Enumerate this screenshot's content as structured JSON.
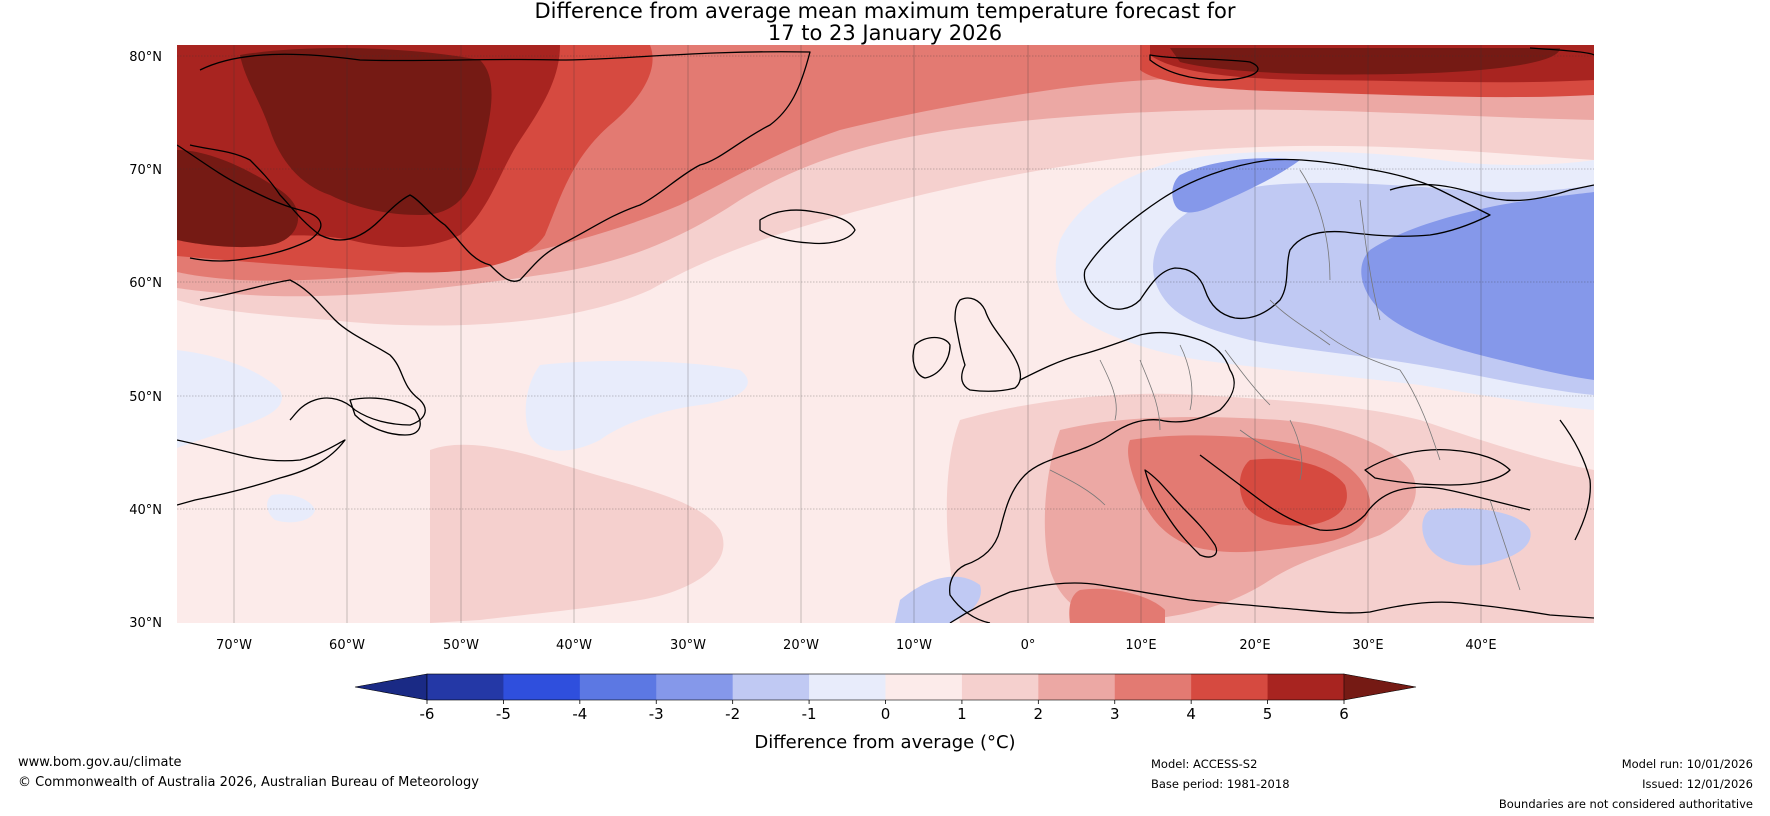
{
  "title": {
    "line1": "Difference from average mean maximum temperature forecast for",
    "line2": "17 to 23 January 2026"
  },
  "axes": {
    "lat_labels": [
      "80°N",
      "70°N",
      "60°N",
      "50°N",
      "40°N",
      "30°N"
    ],
    "lat_values": [
      80,
      70,
      60,
      50,
      40,
      30
    ],
    "lon_labels": [
      "70°W",
      "60°W",
      "50°W",
      "40°W",
      "30°W",
      "20°W",
      "10°W",
      "0°",
      "10°E",
      "20°E",
      "30°E",
      "40°E"
    ],
    "lon_values": [
      -70,
      -60,
      -50,
      -40,
      -30,
      -20,
      -10,
      0,
      10,
      20,
      30,
      40
    ],
    "lon_range": [
      -75,
      50
    ],
    "lat_range": [
      30,
      81
    ]
  },
  "colorbar": {
    "label": "Difference from average (°C)",
    "ticks": [
      "-6",
      "-5",
      "-4",
      "-3",
      "-2",
      "-1",
      "0",
      "1",
      "2",
      "3",
      "4",
      "5",
      "6"
    ],
    "under_color": "#1a2a85",
    "over_color": "#751a14",
    "colors": [
      "#2438a6",
      "#2f4fdd",
      "#5c78e3",
      "#8598ea",
      "#c0c9f3",
      "#e8ecfb",
      "#fcebea",
      "#f5d0ce",
      "#eca8a4",
      "#e37a72",
      "#d64a40",
      "#a82420"
    ]
  },
  "footer": {
    "url": "www.bom.gov.au/climate",
    "copyright": "© Commonwealth of Australia 2026, Australian Bureau of Meteorology",
    "model": "Model: ACCESS-S2",
    "base_period": "Base period: 1981-2018",
    "model_run": "Model run: 10/01/2026",
    "issued": "Issued: 12/01/2026",
    "disclaimer": "Boundaries are not considered authoritative"
  }
}
